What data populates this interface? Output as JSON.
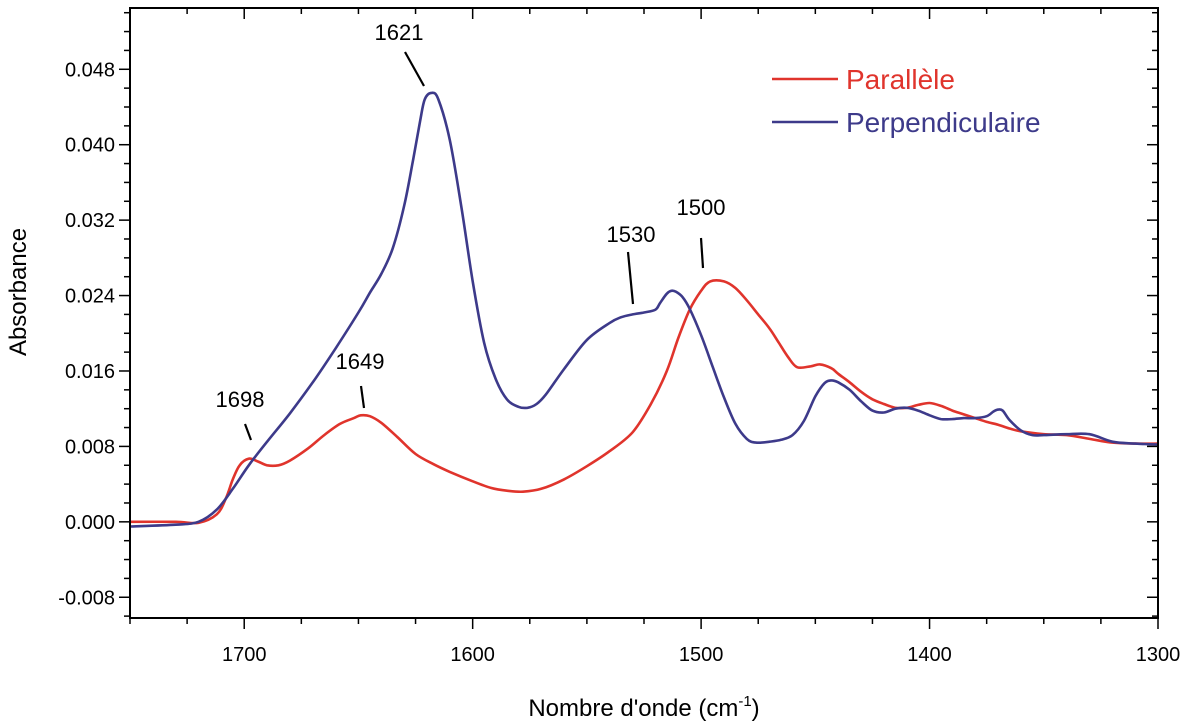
{
  "chart_data": {
    "type": "line",
    "xlabel": "Nombre d'onde (cm",
    "xlabel_sup": "-1",
    "xlabel_suffix": ")",
    "ylabel": "Absorbance",
    "xlim": [
      1750,
      1300
    ],
    "ylim": [
      -0.0102,
      0.0545
    ],
    "x_reversed": true,
    "grid": false,
    "legend_position": "top-right",
    "x_ticks": [
      1700,
      1600,
      1500,
      1400,
      1300
    ],
    "x_tick_labels": [
      "1700",
      "1600",
      "1500",
      "1400",
      "1300"
    ],
    "y_ticks": [
      -0.008,
      0.0,
      0.008,
      0.016,
      0.024,
      0.032,
      0.04,
      0.048
    ],
    "y_tick_labels": [
      "-0.008",
      "0.000",
      "0.008",
      "0.016",
      "0.024",
      "0.032",
      "0.040",
      "0.048"
    ],
    "series": [
      {
        "name": "Parallèle",
        "color": "#e0342c",
        "x": [
          1750,
          1730,
          1720,
          1712,
          1708,
          1705,
          1702,
          1698,
          1694,
          1690,
          1685,
          1680,
          1672,
          1665,
          1658,
          1652,
          1649,
          1645,
          1640,
          1633,
          1625,
          1617,
          1610,
          1600,
          1592,
          1585,
          1578,
          1570,
          1560,
          1550,
          1540,
          1530,
          1522,
          1515,
          1510,
          1505,
          1500,
          1496,
          1490,
          1485,
          1480,
          1475,
          1470,
          1466,
          1462,
          1458,
          1452,
          1448,
          1443,
          1440,
          1435,
          1430,
          1425,
          1420,
          1415,
          1410,
          1405,
          1400,
          1395,
          1390,
          1385,
          1380,
          1375,
          1370,
          1365,
          1360,
          1350,
          1340,
          1330,
          1320,
          1310,
          1300
        ],
        "y": [
          0.0,
          0.0,
          -0.0001,
          0.0008,
          0.0025,
          0.0045,
          0.006,
          0.0067,
          0.0064,
          0.006,
          0.006,
          0.0065,
          0.0078,
          0.0092,
          0.0104,
          0.011,
          0.0113,
          0.0112,
          0.0105,
          0.009,
          0.0072,
          0.0061,
          0.0053,
          0.0043,
          0.0036,
          0.0033,
          0.0032,
          0.0035,
          0.0045,
          0.0059,
          0.0075,
          0.0095,
          0.0125,
          0.016,
          0.0195,
          0.0225,
          0.0245,
          0.0255,
          0.0255,
          0.0248,
          0.0235,
          0.022,
          0.0205,
          0.019,
          0.0175,
          0.0164,
          0.0165,
          0.0167,
          0.0163,
          0.0157,
          0.0148,
          0.0138,
          0.013,
          0.0125,
          0.0121,
          0.0121,
          0.0124,
          0.0126,
          0.0123,
          0.0118,
          0.0114,
          0.011,
          0.0106,
          0.0103,
          0.0099,
          0.0096,
          0.0093,
          0.0092,
          0.0088,
          0.0084,
          0.0083,
          0.0083
        ]
      },
      {
        "name": "Perpendiculaire",
        "color": "#3d3a8a",
        "x": [
          1750,
          1730,
          1720,
          1712,
          1705,
          1698,
          1690,
          1680,
          1670,
          1660,
          1650,
          1645,
          1640,
          1635,
          1630,
          1626,
          1623,
          1621,
          1618,
          1615,
          1610,
          1605,
          1600,
          1595,
          1590,
          1585,
          1580,
          1576,
          1572,
          1568,
          1560,
          1550,
          1540,
          1535,
          1530,
          1525,
          1520,
          1518,
          1515,
          1513,
          1511,
          1508,
          1505,
          1500,
          1495,
          1490,
          1485,
          1480,
          1476,
          1470,
          1465,
          1460,
          1455,
          1450,
          1446,
          1443,
          1440,
          1435,
          1430,
          1425,
          1420,
          1415,
          1410,
          1405,
          1400,
          1395,
          1390,
          1385,
          1380,
          1375,
          1372,
          1370,
          1368,
          1365,
          1360,
          1355,
          1350,
          1340,
          1330,
          1320,
          1310,
          1300
        ],
        "y": [
          -0.0005,
          -0.0003,
          0.0,
          0.0013,
          0.0035,
          0.006,
          0.0085,
          0.0115,
          0.0148,
          0.0184,
          0.0222,
          0.0243,
          0.0263,
          0.029,
          0.0335,
          0.0385,
          0.0425,
          0.0448,
          0.0455,
          0.0448,
          0.0405,
          0.0335,
          0.0255,
          0.019,
          0.0152,
          0.013,
          0.0122,
          0.0121,
          0.0125,
          0.0135,
          0.0162,
          0.0193,
          0.0211,
          0.0217,
          0.022,
          0.0222,
          0.0225,
          0.0232,
          0.0242,
          0.0245,
          0.0244,
          0.0238,
          0.0226,
          0.0198,
          0.0165,
          0.0132,
          0.0104,
          0.0088,
          0.0084,
          0.0085,
          0.0087,
          0.0092,
          0.0107,
          0.0133,
          0.0147,
          0.015,
          0.0148,
          0.014,
          0.0128,
          0.0118,
          0.0116,
          0.012,
          0.0121,
          0.0118,
          0.0113,
          0.0109,
          0.0109,
          0.011,
          0.011,
          0.0112,
          0.0117,
          0.0119,
          0.0118,
          0.0108,
          0.0097,
          0.0092,
          0.0092,
          0.0093,
          0.0093,
          0.0085,
          0.0083,
          0.0082
        ]
      }
    ],
    "annotations": [
      {
        "text": "1698",
        "x": 1698,
        "y": 0.0067
      },
      {
        "text": "1649",
        "x": 1649,
        "y": 0.0113
      },
      {
        "text": "1621",
        "x": 1621,
        "y": 0.0455
      },
      {
        "text": "1530",
        "x": 1530,
        "y": 0.022
      },
      {
        "text": "1500",
        "x": 1500,
        "y": 0.0255
      }
    ]
  }
}
